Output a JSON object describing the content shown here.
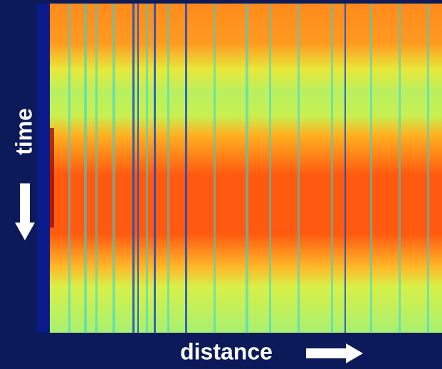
{
  "labels": {
    "y_axis": "time",
    "x_axis": "distance"
  }
}
